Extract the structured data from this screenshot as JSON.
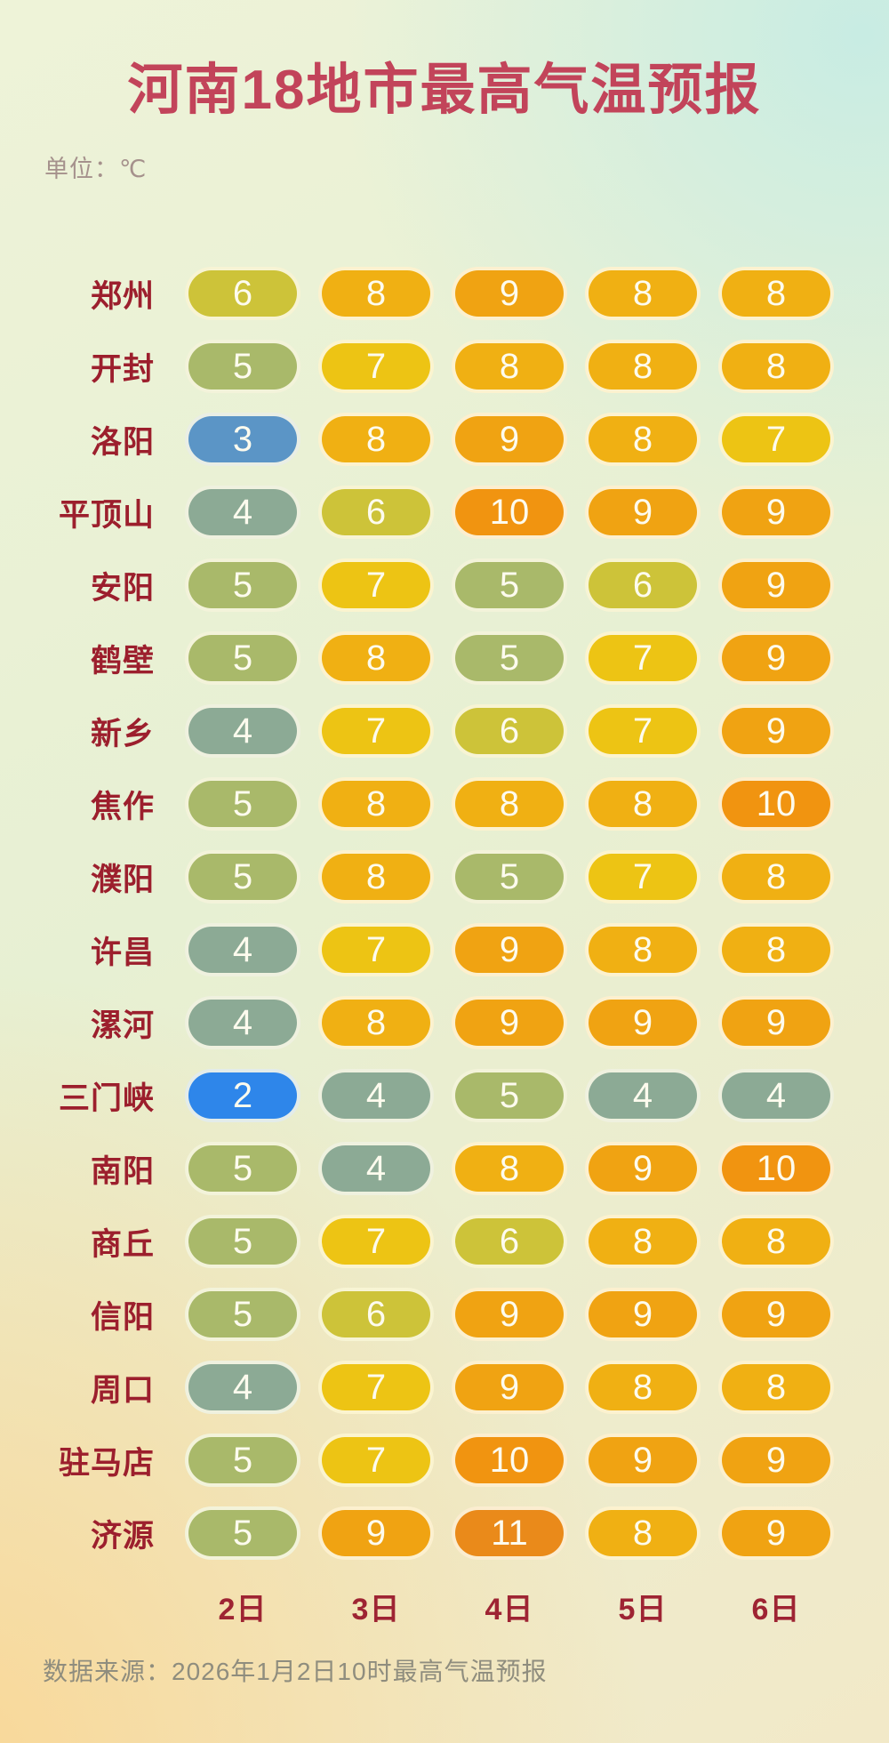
{
  "title": "河南18地市最高气温预报",
  "unit_label": "单位：℃",
  "columns": [
    "2日",
    "3日",
    "4日",
    "5日",
    "6日"
  ],
  "footer": {
    "source": "数据来源：2026年1月2日10时最高气温预报"
  },
  "colors": {
    "title_text": "#c2445a",
    "city_text": "#9c1f2d",
    "date_text": "#9e2433",
    "unit_text": "#a5918c",
    "source_text": "#8f8d7e",
    "pill_text": "#fdfbee"
  },
  "chart_data": {
    "type": "heatmap",
    "title": "河南18地市最高气温预报",
    "unit": "℃",
    "columns": [
      "2日",
      "3日",
      "4日",
      "5日",
      "6日"
    ],
    "rows": [
      {
        "city": "郑州",
        "values": [
          6,
          8,
          9,
          8,
          8
        ]
      },
      {
        "city": "开封",
        "values": [
          5,
          7,
          8,
          8,
          8
        ]
      },
      {
        "city": "洛阳",
        "values": [
          3,
          8,
          9,
          8,
          7
        ]
      },
      {
        "city": "平顶山",
        "values": [
          4,
          6,
          10,
          9,
          9
        ]
      },
      {
        "city": "安阳",
        "values": [
          5,
          7,
          5,
          6,
          9
        ]
      },
      {
        "city": "鹤壁",
        "values": [
          5,
          8,
          5,
          7,
          9
        ]
      },
      {
        "city": "新乡",
        "values": [
          4,
          7,
          6,
          7,
          9
        ]
      },
      {
        "city": "焦作",
        "values": [
          5,
          8,
          8,
          8,
          10
        ]
      },
      {
        "city": "濮阳",
        "values": [
          5,
          8,
          5,
          7,
          8
        ]
      },
      {
        "city": "许昌",
        "values": [
          4,
          7,
          9,
          8,
          8
        ]
      },
      {
        "city": "漯河",
        "values": [
          4,
          8,
          9,
          9,
          9
        ]
      },
      {
        "city": "三门峡",
        "values": [
          2,
          4,
          5,
          4,
          4
        ]
      },
      {
        "city": "南阳",
        "values": [
          5,
          4,
          8,
          9,
          10
        ]
      },
      {
        "city": "商丘",
        "values": [
          5,
          7,
          6,
          8,
          8
        ]
      },
      {
        "city": "信阳",
        "values": [
          5,
          6,
          9,
          9,
          9
        ]
      },
      {
        "city": "周口",
        "values": [
          4,
          7,
          9,
          8,
          8
        ]
      },
      {
        "city": "驻马店",
        "values": [
          5,
          7,
          10,
          9,
          9
        ]
      },
      {
        "city": "济源",
        "values": [
          5,
          9,
          11,
          8,
          9
        ]
      }
    ],
    "color_scale": {
      "2": "#2e86ea",
      "3": "#5b95c6",
      "4": "#8caa95",
      "5": "#a9b96a",
      "6": "#cdc339",
      "7": "#edc414",
      "8": "#f0b013",
      "9": "#f0a312",
      "10": "#f19410",
      "11": "#ea8a1a"
    }
  }
}
